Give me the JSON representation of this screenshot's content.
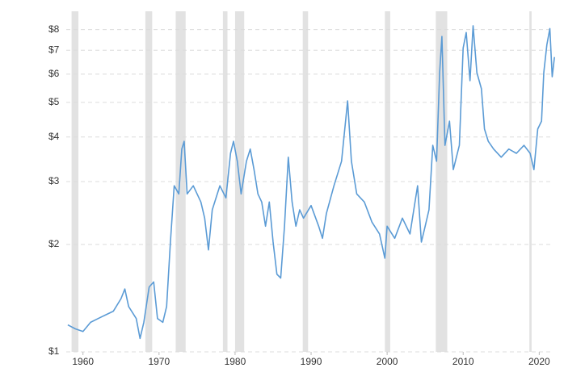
{
  "chart_data": {
    "type": "line",
    "log_scale_y": true,
    "grid": true,
    "color": "#5b9bd5",
    "shade_color": "#e2e2e2",
    "xlim": [
      1957.8,
      2022.3
    ],
    "xticks": [
      1960,
      1970,
      1980,
      1990,
      2000,
      2010,
      2020
    ],
    "ylim": [
      1,
      9
    ],
    "yticks": [
      {
        "value": 1,
        "label": "$1"
      },
      {
        "value": 2,
        "label": "$2"
      },
      {
        "value": 3,
        "label": "$3"
      },
      {
        "value": 4,
        "label": "$4"
      },
      {
        "value": 5,
        "label": "$5"
      },
      {
        "value": 6,
        "label": "$6"
      },
      {
        "value": 7,
        "label": "$7"
      },
      {
        "value": 8,
        "label": "$8"
      }
    ],
    "shaded_ranges": [
      [
        1958.5,
        1959.4
      ],
      [
        1968.2,
        1969.1
      ],
      [
        1972.2,
        1973.5
      ],
      [
        1978.4,
        1979.0
      ],
      [
        1980.0,
        1981.2
      ],
      [
        1988.9,
        1989.6
      ],
      [
        1999.7,
        2000.4
      ],
      [
        2006.4,
        2007.9
      ],
      [
        2018.7,
        2019.0
      ]
    ],
    "x": [
      1958.0,
      1959,
      1960,
      1961,
      1962,
      1963,
      1964,
      1965,
      1965.5,
      1966,
      1967,
      1967.5,
      1968,
      1968.7,
      1969.3,
      1969.8,
      1970.5,
      1971,
      1971.5,
      1972,
      1972.6,
      1973,
      1973.3,
      1973.7,
      1974.5,
      1975.5,
      1976,
      1976.5,
      1977,
      1978,
      1978.8,
      1979.4,
      1979.8,
      1980.3,
      1980.8,
      1981.5,
      1982,
      1982.5,
      1983,
      1983.5,
      1984,
      1984.5,
      1985,
      1985.5,
      1986,
      1986.5,
      1987,
      1987.5,
      1988,
      1988.5,
      1989,
      1990,
      1991,
      1991.5,
      1992,
      1993,
      1994,
      1994.8,
      1995.3,
      1996,
      1997,
      1998,
      1999,
      1999.7,
      2000,
      2001,
      2002,
      2003,
      2004,
      2004.5,
      2005,
      2005.5,
      2006,
      2006.5,
      2006.9,
      2007.2,
      2007.6,
      2008.2,
      2008.7,
      2009.5,
      2010,
      2010.4,
      2010.9,
      2011.3,
      2011.8,
      2012.4,
      2012.8,
      2013.3,
      2014,
      2015,
      2016,
      2017,
      2018,
      2018.8,
      2019.3,
      2019.8,
      2020.3,
      2020.6,
      2021,
      2021.4,
      2021.7,
      2022.0
    ],
    "values": [
      1.19,
      1.16,
      1.14,
      1.21,
      1.24,
      1.27,
      1.3,
      1.41,
      1.5,
      1.34,
      1.24,
      1.09,
      1.21,
      1.52,
      1.57,
      1.24,
      1.21,
      1.34,
      2.03,
      2.92,
      2.77,
      3.7,
      3.89,
      2.77,
      2.92,
      2.63,
      2.37,
      1.93,
      2.5,
      2.92,
      2.7,
      3.6,
      3.89,
      3.42,
      2.77,
      3.42,
      3.7,
      3.24,
      2.77,
      2.63,
      2.25,
      2.63,
      2.03,
      1.65,
      1.61,
      2.25,
      3.51,
      2.63,
      2.25,
      2.5,
      2.37,
      2.57,
      2.25,
      2.08,
      2.44,
      2.92,
      3.42,
      5.05,
      3.42,
      2.77,
      2.63,
      2.31,
      2.14,
      1.83,
      2.25,
      2.08,
      2.37,
      2.14,
      2.92,
      2.03,
      2.25,
      2.5,
      3.79,
      3.42,
      6.06,
      7.65,
      3.79,
      4.43,
      3.24,
      3.79,
      7.1,
      7.85,
      5.75,
      8.2,
      6.06,
      5.46,
      4.21,
      3.89,
      3.7,
      3.51,
      3.7,
      3.6,
      3.79,
      3.6,
      3.24,
      4.21,
      4.43,
      6.06,
      7.25,
      8.05,
      5.9,
      6.7
    ]
  }
}
